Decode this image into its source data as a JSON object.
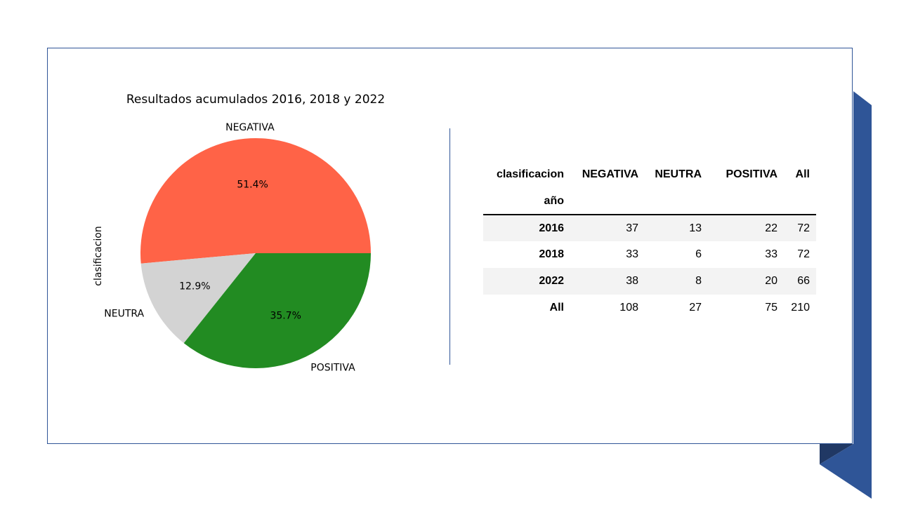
{
  "chart_data": [
    {
      "type": "pie",
      "title": "Resultados acumulados 2016, 2018 y 2022",
      "ylabel": "clasificacion",
      "slices": [
        {
          "label": "NEGATIVA",
          "value": 108,
          "pct": "51.4%",
          "color": "#ff6347"
        },
        {
          "label": "NEUTRA",
          "value": 27,
          "pct": "12.9%",
          "color": "#d3d3d3"
        },
        {
          "label": "POSITIVA",
          "value": 75,
          "pct": "35.7%",
          "color": "#228b22"
        }
      ]
    },
    {
      "type": "table",
      "header": {
        "corner": "clasificacion",
        "columns": [
          "NEGATIVA",
          "NEUTRA",
          "POSITIVA",
          "All"
        ],
        "index_name": "año"
      },
      "rows": [
        {
          "label": "2016",
          "values": [
            "37",
            "13",
            "22",
            "72"
          ]
        },
        {
          "label": "2018",
          "values": [
            "33",
            "6",
            "33",
            "72"
          ]
        },
        {
          "label": "2022",
          "values": [
            "38",
            "8",
            "20",
            "66"
          ]
        },
        {
          "label": "All",
          "values": [
            "108",
            "27",
            "75",
            "210"
          ]
        }
      ]
    }
  ],
  "colors": {
    "accent": "#2f5597",
    "accent_dark": "#203864"
  }
}
